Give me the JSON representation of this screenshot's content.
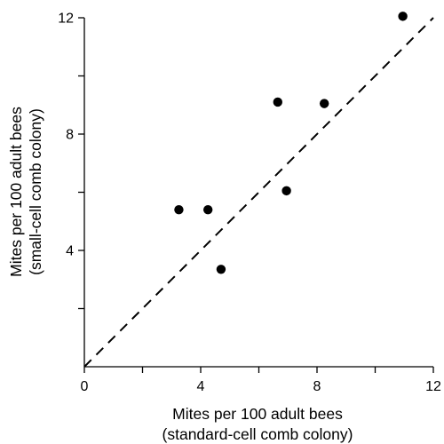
{
  "chart_data": {
    "type": "scatter",
    "title": "",
    "xlabel": [
      "Mites per 100 adult bees",
      "(standard-cell comb colony)"
    ],
    "ylabel": [
      "Mites per 100 adult bees",
      "(small-cell comb colony)"
    ],
    "xlim": [
      0,
      12
    ],
    "ylim": [
      0,
      12
    ],
    "x_major_ticks": [
      0,
      4,
      8,
      12
    ],
    "y_major_ticks": [
      4,
      8,
      12
    ],
    "minor_ticks": [
      2,
      6,
      10
    ],
    "x_tick_labels": [
      "0",
      "4",
      "8",
      "12"
    ],
    "y_tick_labels": [
      "4",
      "8",
      "12"
    ],
    "grid": false,
    "legend": "none",
    "reference_line": {
      "style": "dashed",
      "from": [
        0,
        0
      ],
      "to": [
        12,
        12
      ],
      "label": ""
    },
    "points": [
      {
        "x": 3.25,
        "y": 5.4
      },
      {
        "x": 4.25,
        "y": 5.4
      },
      {
        "x": 4.7,
        "y": 3.35
      },
      {
        "x": 6.65,
        "y": 9.1
      },
      {
        "x": 6.95,
        "y": 6.05
      },
      {
        "x": 8.25,
        "y": 9.05
      },
      {
        "x": 10.95,
        "y": 12.05
      }
    ],
    "colors": {
      "points": "#000000",
      "axes": "#000000",
      "line": "#000000"
    }
  }
}
